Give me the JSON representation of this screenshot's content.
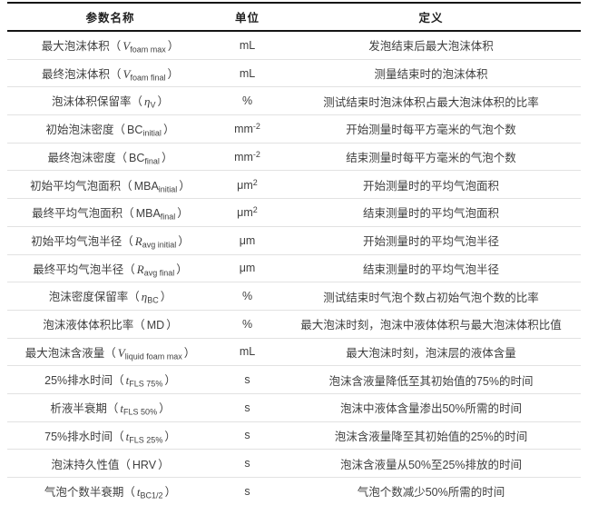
{
  "colors": {
    "header_border": "#151515",
    "row_border": "#e2e2e2",
    "header_text": "#1f1f1f",
    "body_text": "#3f3f3f",
    "background": "#ffffff"
  },
  "table": {
    "headers": [
      "参数名称",
      "单位",
      "定义"
    ],
    "rows": [
      {
        "param_prefix": "最大泡沫体积（",
        "symbol": "V",
        "symbol_italic": true,
        "subscript": "foam max",
        "param_suffix": "）",
        "unit": "mL",
        "unit_sup": "",
        "definition": "发泡结束后最大泡沫体积"
      },
      {
        "param_prefix": "最终泡沫体积（",
        "symbol": "V",
        "symbol_italic": true,
        "subscript": "foam final",
        "param_suffix": "）",
        "unit": "mL",
        "unit_sup": "",
        "definition": "测量结束时的泡沫体积"
      },
      {
        "param_prefix": "泡沫体积保留率（",
        "symbol": "η",
        "symbol_italic": true,
        "subscript": "V",
        "param_suffix": "）",
        "unit": "%",
        "unit_sup": "",
        "definition": "测试结束时泡沫体积占最大泡沫体积的比率"
      },
      {
        "param_prefix": "初始泡沫密度（",
        "symbol": "BC",
        "symbol_italic": false,
        "subscript": "initial",
        "param_suffix": "）",
        "unit": "mm",
        "unit_sup": "-2",
        "definition": "开始测量时每平方毫米的气泡个数"
      },
      {
        "param_prefix": "最终泡沫密度（",
        "symbol": "BC",
        "symbol_italic": false,
        "subscript": "final",
        "param_suffix": "）",
        "unit": "mm",
        "unit_sup": "-2",
        "definition": "结束测量时每平方毫米的气泡个数"
      },
      {
        "param_prefix": "初始平均气泡面积（",
        "symbol": "MBA",
        "symbol_italic": false,
        "subscript": "initial",
        "param_suffix": "）",
        "unit": "μm",
        "unit_sup": "2",
        "definition": "开始测量时的平均气泡面积"
      },
      {
        "param_prefix": "最终平均气泡面积（",
        "symbol": "MBA",
        "symbol_italic": false,
        "subscript": "final",
        "param_suffix": "）",
        "unit": "μm",
        "unit_sup": "2",
        "definition": "结束测量时的平均气泡面积"
      },
      {
        "param_prefix": "初始平均气泡半径（",
        "symbol": "R",
        "symbol_italic": true,
        "subscript": "avg initial",
        "param_suffix": "）",
        "unit": "μm",
        "unit_sup": "",
        "definition": "开始测量时的平均气泡半径"
      },
      {
        "param_prefix": "最终平均气泡半径（",
        "symbol": "R",
        "symbol_italic": true,
        "subscript": "avg final",
        "param_suffix": "）",
        "unit": "μm",
        "unit_sup": "",
        "definition": "结束测量时的平均气泡半径"
      },
      {
        "param_prefix": "泡沫密度保留率（",
        "symbol": "η",
        "symbol_italic": true,
        "subscript": "BC",
        "param_suffix": "）",
        "unit": "%",
        "unit_sup": "",
        "definition": "测试结束时气泡个数占初始气泡个数的比率"
      },
      {
        "param_prefix": "泡沫液体体积比率（",
        "symbol": "MD",
        "symbol_italic": false,
        "subscript": "",
        "param_suffix": "）",
        "unit": "%",
        "unit_sup": "",
        "definition": "最大泡沫时刻，泡沫中液体体积与最大泡沫体积比值"
      },
      {
        "param_prefix": "最大泡沫含液量（",
        "symbol": "V",
        "symbol_italic": true,
        "subscript": "liquid foam max",
        "param_suffix": "）",
        "unit": "mL",
        "unit_sup": "",
        "definition": "最大泡沫时刻，泡沫层的液体含量"
      },
      {
        "param_prefix": "25%排水时间（",
        "symbol": "t",
        "symbol_italic": true,
        "subscript": "FLS 75%",
        "param_suffix": "）",
        "unit": "s",
        "unit_sup": "",
        "definition": "泡沫含液量降低至其初始值的75%的时间"
      },
      {
        "param_prefix": "析液半衰期（",
        "symbol": "t",
        "symbol_italic": true,
        "subscript": "FLS 50%",
        "param_suffix": "）",
        "unit": "s",
        "unit_sup": "",
        "definition": "泡沫中液体含量渗出50%所需的时间"
      },
      {
        "param_prefix": "75%排水时间（",
        "symbol": "t",
        "symbol_italic": true,
        "subscript": "FLS 25%",
        "param_suffix": "）",
        "unit": "s",
        "unit_sup": "",
        "definition": "泡沫含液量降至其初始值的25%的时间"
      },
      {
        "param_prefix": "泡沫持久性值（",
        "symbol": "HRV",
        "symbol_italic": false,
        "subscript": "",
        "param_suffix": "）",
        "unit": "s",
        "unit_sup": "",
        "definition": "泡沫含液量从50%至25%排放的时间"
      },
      {
        "param_prefix": "气泡个数半衰期（",
        "symbol": "t",
        "symbol_italic": true,
        "subscript": "BC1/2",
        "param_suffix": "）",
        "unit": "s",
        "unit_sup": "",
        "definition": "气泡个数减少50%所需的时间"
      }
    ]
  }
}
